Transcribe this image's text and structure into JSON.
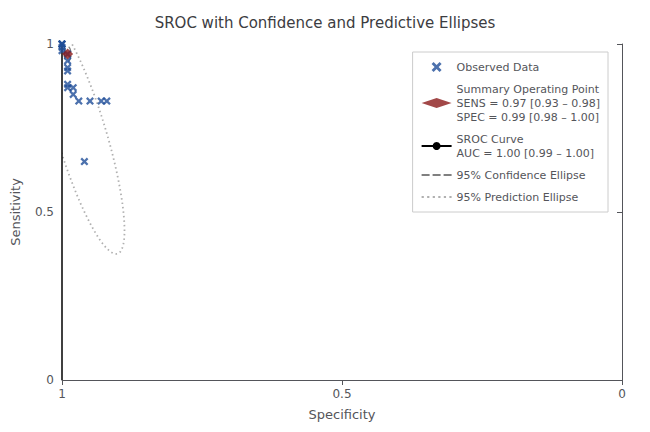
{
  "chart_data": {
    "type": "scatter",
    "title": "SROC with Confidence and Predictive Ellipses",
    "xlabel": "Specificity",
    "ylabel": "Sensitivity",
    "xlim": [
      1.0,
      0.0
    ],
    "ylim": [
      0.0,
      1.0
    ],
    "xticks": [
      1.0,
      0.5,
      0.0
    ],
    "yticks": [
      0.0,
      0.5,
      1.0
    ],
    "grid": false,
    "legend": "upper right",
    "series": [
      {
        "name": "Observed Data",
        "type": "scatter",
        "marker": "x",
        "color": "#1f4e99",
        "x": [
          1.0,
          1.0,
          1.0,
          1.0,
          1.0,
          0.99,
          0.99,
          0.99,
          0.99,
          0.99,
          0.99,
          0.98,
          0.98,
          0.97,
          0.96,
          0.95,
          0.93,
          0.92
        ],
        "values": [
          1.0,
          1.0,
          1.0,
          0.99,
          0.98,
          0.97,
          0.95,
          0.93,
          0.92,
          0.88,
          0.87,
          0.87,
          0.85,
          0.83,
          0.65,
          0.83,
          0.83,
          0.83
        ]
      },
      {
        "name": "Summary Operating Point\nSENS = 0.97 [0.93 – 0.98]\nSPEC = 0.99 [0.98 – 1.00]",
        "type": "scatter",
        "marker": "diamond",
        "color": "#8b1a1a",
        "x": [
          0.99
        ],
        "values": [
          0.97
        ]
      },
      {
        "name": "SROC Curve\nAUC = 1.00 [0.99 – 1.00]",
        "type": "line",
        "line_style": "solid",
        "color": "#000000",
        "x": [
          1.0,
          1.0
        ],
        "values": [
          0.0,
          1.0
        ]
      },
      {
        "name": "95% Confidence Ellipse",
        "type": "ellipse",
        "line_style": "dashed",
        "color": "#808080",
        "center_x": 0.99,
        "center_y": 0.97,
        "width": 0.012,
        "height": 0.045,
        "angle": 0
      },
      {
        "name": "95% Prediction Ellipse",
        "type": "ellipse",
        "line_style": "dotted",
        "color": "#b0b0b0",
        "center_x": 0.965,
        "center_y": 0.73,
        "width": 0.09,
        "height": 0.72,
        "angle": -10
      }
    ]
  }
}
